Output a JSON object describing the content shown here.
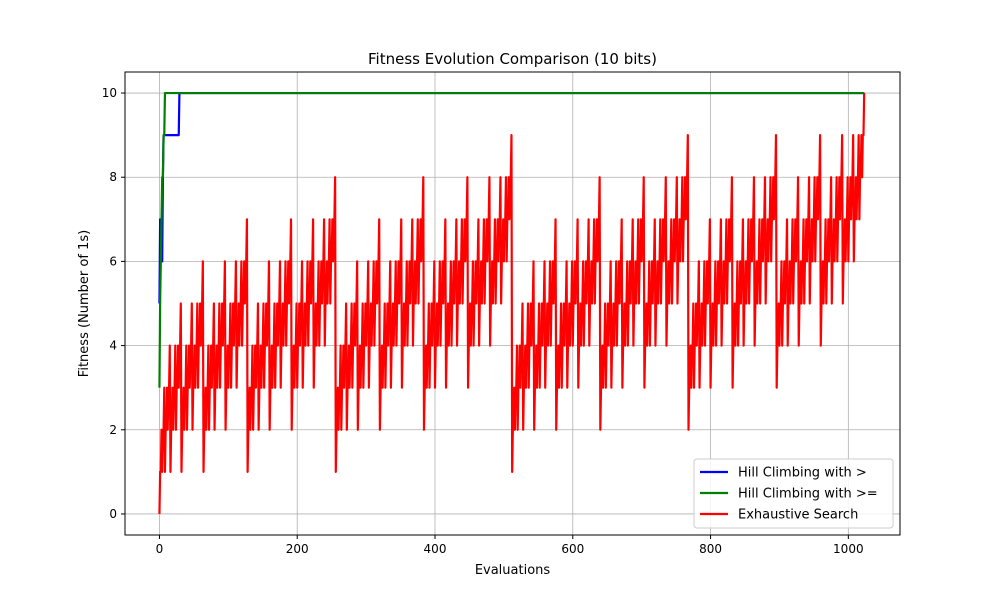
{
  "chart_data": {
    "type": "line",
    "title": "Fitness Evolution Comparison (10 bits)",
    "xlabel": "Evaluations",
    "ylabel": "Fitness (Number of 1s)",
    "xlim": [
      -50,
      1075
    ],
    "ylim": [
      -0.5,
      10.5
    ],
    "xticks": [
      0,
      200,
      400,
      600,
      800,
      1000
    ],
    "yticks": [
      0,
      2,
      4,
      6,
      8,
      10
    ],
    "grid": true,
    "legend_position": "lower-right",
    "series": [
      {
        "name": "Hill Climbing with >",
        "color": "#0000ff",
        "x": [
          0,
          1,
          2,
          3,
          4,
          5,
          6,
          7,
          8,
          28,
          29,
          1023
        ],
        "y": [
          5,
          7,
          6,
          6,
          6,
          8,
          9,
          9,
          9,
          9,
          10,
          10
        ]
      },
      {
        "name": "Hill Climbing with >=",
        "color": "#008000",
        "x": [
          0,
          1,
          2,
          3,
          4,
          5,
          6,
          7,
          8,
          9,
          1023
        ],
        "y": [
          3,
          5,
          6,
          7,
          8,
          8,
          9,
          9,
          10,
          10,
          10
        ]
      },
      {
        "name": "Exhaustive Search",
        "color": "#ff0000",
        "generator": "popcount",
        "n_evaluations": 1024
      }
    ]
  }
}
